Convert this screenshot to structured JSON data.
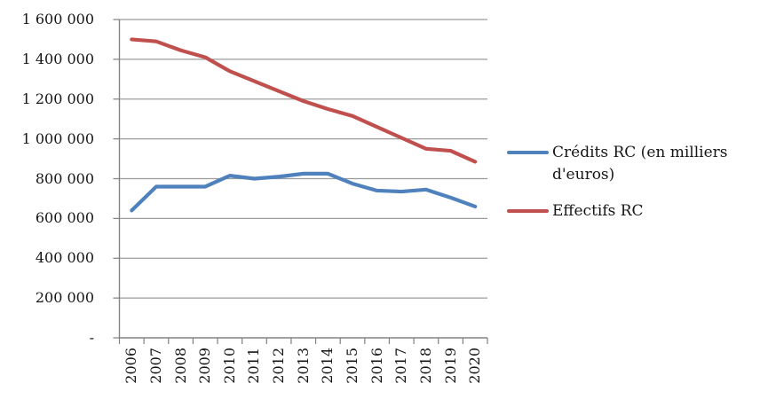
{
  "chart_data": {
    "type": "line",
    "title": "",
    "categories": [
      "2006",
      "2007",
      "2008",
      "2009",
      "2010",
      "2011",
      "2012",
      "2013",
      "2014",
      "2015",
      "2016",
      "2017",
      "2018",
      "2019",
      "2020"
    ],
    "series": [
      {
        "name": "Crédits RC (en milliers d'euros)",
        "color": "#4F81BD",
        "values": [
          640000,
          760000,
          760000,
          760000,
          815000,
          800000,
          810000,
          825000,
          825000,
          775000,
          740000,
          735000,
          745000,
          705000,
          660000
        ]
      },
      {
        "name": "Effectifs RC",
        "color": "#C0504D",
        "values": [
          1500000,
          1490000,
          1445000,
          1410000,
          1340000,
          1290000,
          1240000,
          1190000,
          1150000,
          1115000,
          1060000,
          1005000,
          950000,
          940000,
          885000
        ]
      }
    ],
    "y_axis": {
      "min": 0,
      "max": 1600000,
      "tick_interval": 200000,
      "tick_labels_top_down": [
        "1 600 000",
        "1 400 000",
        "1 200 000",
        "1 000 000",
        "800 000",
        "600 000",
        "400 000",
        "200 000",
        "-"
      ]
    },
    "x_axis": {
      "label": ""
    },
    "grid": true,
    "legend_position": "right"
  },
  "legend": {
    "items": [
      {
        "label": "Crédits RC (en milliers d'euros)"
      },
      {
        "label": "Effectifs RC"
      }
    ]
  },
  "colors": {
    "series_1": "#4F81BD",
    "series_2": "#C0504D",
    "gridline": "#9b9b9b",
    "axis": "#848484",
    "text": "#161616",
    "background": "#ffffff"
  }
}
